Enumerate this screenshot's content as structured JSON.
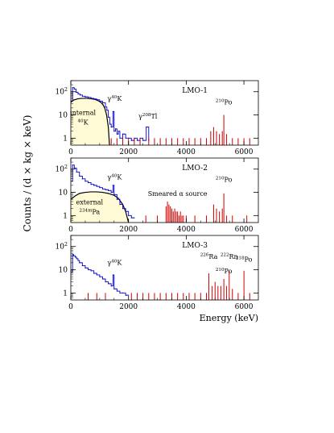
{
  "chart_data": [
    {
      "type": "line",
      "title": "LMO-1",
      "xlabel": "",
      "ylabel": "",
      "xlim": [
        0,
        6500
      ],
      "ylim": [
        0.5,
        300
      ],
      "yscale": "log",
      "x_ticks": [
        "0",
        "2000",
        "4000",
        "6000"
      ],
      "y_ticks": [
        {
          "label": "1",
          "value": 1
        },
        {
          "label": "10",
          "value": 10
        },
        {
          "label": "10",
          "sup": "2",
          "value": 100
        }
      ],
      "fill_region": {
        "label": "internal",
        "label_sup": "40",
        "label_base": "K",
        "x": [
          0,
          100,
          250,
          400,
          550,
          700,
          850,
          950,
          1050,
          1120,
          1180,
          1240,
          1300,
          1340
        ],
        "y": [
          35,
          44,
          50,
          52,
          52,
          50,
          46,
          41,
          34,
          27,
          19,
          10,
          3,
          0.5
        ]
      },
      "series": [
        {
          "color": "#0000c8",
          "x": [
            0,
            60,
            120,
            180,
            250,
            320,
            400,
            500,
            600,
            700,
            800,
            900,
            1000,
            1100,
            1200,
            1250,
            1300,
            1350,
            1400,
            1460,
            1500,
            1550,
            1600,
            1650,
            1700,
            1800,
            1900,
            2000,
            2100,
            2200,
            2300,
            2400,
            2500,
            2614,
            2700
          ],
          "y": [
            40,
            150,
            130,
            95,
            80,
            72,
            64,
            60,
            57,
            52,
            49,
            45,
            39,
            33,
            22,
            16,
            8,
            4,
            3,
            14,
            2,
            2.5,
            1.5,
            2,
            1,
            1.5,
            1,
            1,
            0.8,
            1,
            0.8,
            1,
            0.8,
            3,
            0.8
          ]
        },
        {
          "color": "#d00000",
          "x": [
            1400,
            1600,
            1800,
            2000,
            2200,
            2400,
            2700,
            2900,
            3100,
            3300,
            3500,
            3700,
            3900,
            4100,
            4300,
            4500,
            4700,
            4850,
            4950,
            5050,
            5150,
            5250,
            5304,
            5400,
            5600,
            5800,
            6000,
            6200
          ],
          "y": [
            1,
            1,
            1,
            1,
            1,
            1,
            1,
            1,
            1,
            1,
            1,
            1,
            1,
            1,
            1,
            1,
            1,
            2,
            3,
            2,
            1.5,
            2,
            10,
            1.5,
            1,
            1,
            1,
            1
          ]
        }
      ],
      "annotations": [
        {
          "text": "γ",
          "sup": "40",
          "base": "K",
          "x": 1461,
          "y": 40
        },
        {
          "text": "γ",
          "sup": "208",
          "base": "Tl",
          "x": 2614,
          "y": 7
        },
        {
          "text": "",
          "sup": "210",
          "base": "Po",
          "x": 5304,
          "y": 28
        }
      ]
    },
    {
      "type": "line",
      "title": "LMO-2",
      "xlabel": "",
      "ylabel": "",
      "xlim": [
        0,
        6500
      ],
      "ylim": [
        0.5,
        300
      ],
      "yscale": "log",
      "x_ticks": [
        "0",
        "2000",
        "4000",
        "6000"
      ],
      "y_ticks": [
        {
          "label": "1",
          "value": 1
        },
        {
          "label": "10",
          "value": 10
        },
        {
          "label": "10",
          "sup": "2",
          "value": 100
        }
      ],
      "fill_region": {
        "label": "external",
        "label_sup": "234m",
        "label_base": "Pa",
        "x": [
          0,
          150,
          300,
          500,
          700,
          900,
          1100,
          1300,
          1500,
          1650,
          1800,
          1900,
          2000
        ],
        "y": [
          5,
          7,
          9,
          10,
          10.5,
          10.5,
          10,
          9,
          7.5,
          5.5,
          3,
          1.5,
          0.5
        ]
      },
      "series": [
        {
          "color": "#0000c8",
          "x": [
            0,
            60,
            120,
            200,
            300,
            400,
            500,
            600,
            700,
            800,
            900,
            1000,
            1100,
            1200,
            1300,
            1400,
            1461,
            1500,
            1600,
            1700,
            1800,
            1900,
            2000,
            2100,
            2200
          ],
          "y": [
            30,
            150,
            110,
            75,
            50,
            38,
            30,
            26,
            22,
            20,
            18,
            16,
            14,
            13,
            12,
            10,
            20,
            8,
            5,
            3,
            2,
            1.5,
            1,
            0.8,
            0.8
          ]
        },
        {
          "color": "#d00000",
          "x": [
            2600,
            3000,
            3300,
            3350,
            3400,
            3450,
            3500,
            3550,
            3600,
            3650,
            3700,
            3750,
            3800,
            3850,
            3900,
            4000,
            4300,
            4700,
            4950,
            5050,
            5150,
            5250,
            5304,
            5400,
            5600,
            6100
          ],
          "y": [
            1,
            1,
            2.5,
            4,
            3,
            2.5,
            2,
            1.5,
            2,
            1.5,
            1.5,
            1,
            1.5,
            1,
            1,
            1,
            1,
            1,
            3,
            2,
            1.5,
            2,
            9,
            1,
            1,
            1
          ]
        }
      ],
      "annotations": [
        {
          "text": "γ",
          "sup": "40",
          "base": "K",
          "x": 1461,
          "y": 36
        },
        {
          "text": "Smeared α source",
          "x": 3700,
          "y": 7
        },
        {
          "text": "",
          "sup": "210",
          "base": "Po",
          "x": 5304,
          "y": 28
        }
      ]
    },
    {
      "type": "line",
      "title": "LMO-3",
      "xlabel": "Energy (keV)",
      "ylabel": "",
      "xlim": [
        0,
        6500
      ],
      "ylim": [
        0.5,
        300
      ],
      "yscale": "log",
      "x_ticks": [
        "0",
        "2000",
        "4000",
        "6000"
      ],
      "y_ticks": [
        {
          "label": "1",
          "value": 1
        },
        {
          "label": "10",
          "value": 10
        },
        {
          "label": "10",
          "sup": "2",
          "value": 100
        }
      ],
      "series": [
        {
          "color": "#0000c8",
          "x": [
            0,
            60,
            100,
            150,
            200,
            250,
            300,
            400,
            500,
            600,
            700,
            800,
            900,
            1000,
            1100,
            1200,
            1300,
            1400,
            1461,
            1500,
            1600,
            1700,
            1800,
            1900,
            2000
          ],
          "y": [
            8,
            45,
            40,
            35,
            30,
            25,
            20,
            15,
            12,
            10,
            9,
            7,
            6,
            5,
            4,
            3,
            2.5,
            2,
            6,
            1.5,
            1.2,
            1,
            1,
            0.8,
            0.8
          ]
        },
        {
          "color": "#d00000",
          "x": [
            600,
            900,
            1200,
            2100,
            2300,
            2500,
            2700,
            2900,
            3100,
            3300,
            3500,
            3700,
            3900,
            4100,
            4300,
            4500,
            4700,
            4785,
            4900,
            5000,
            5100,
            5200,
            5304,
            5400,
            5490,
            5600,
            5800,
            6002,
            6200
          ],
          "y": [
            1,
            1,
            1,
            1,
            1,
            1,
            1,
            1,
            1,
            1,
            1,
            1,
            1,
            1,
            1,
            1,
            1,
            7,
            2,
            3,
            2,
            2,
            4,
            2,
            9,
            1.5,
            1,
            9,
            1
          ]
        }
      ],
      "annotations": [
        {
          "text": "γ",
          "sup": "40",
          "base": "K",
          "x": 1461,
          "y": 16
        },
        {
          "text": "",
          "sup": "226",
          "base": "Ra",
          "x": 4785,
          "y": 30
        },
        {
          "text": "",
          "sup": "222",
          "base": "Rn",
          "x": 5490,
          "y": 30
        },
        {
          "text": "",
          "sup": "218",
          "base": "Po",
          "x": 6002,
          "y": 22
        },
        {
          "text": "",
          "sup": "210",
          "base": "Po",
          "x": 5304,
          "y": 7
        }
      ]
    }
  ],
  "figure": {
    "ylabel_text": "Counts / (d × kg × keV)",
    "axis_color": "#000000",
    "fill_color": "#fffbd6",
    "model_curve_color": "#000000"
  }
}
